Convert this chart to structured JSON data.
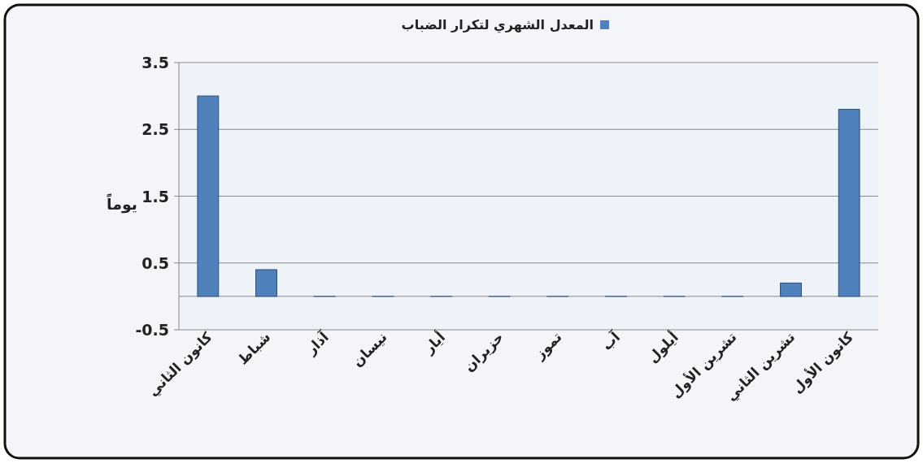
{
  "chart_data": {
    "type": "bar",
    "categories": [
      "كانون الثاني",
      "شباط",
      "آذار",
      "نيسان",
      "أيار",
      "حزيران",
      "تموز",
      "آب",
      "أيلول",
      "تشرين الأول",
      "تشرين الثاني",
      "كانون الأول"
    ],
    "series": [
      {
        "name": "المعدل الشهري لتكرار الضباب",
        "color": "#4f81bd",
        "values": [
          3.0,
          0.4,
          0,
          0,
          0,
          0,
          0,
          0,
          0,
          0,
          0.2,
          2.8
        ]
      }
    ],
    "ylabel": "يوماً",
    "ylim": [
      -0.5,
      3.5
    ],
    "yticks": [
      -0.5,
      0.5,
      1.5,
      2.5,
      3.5
    ],
    "grid": "y",
    "legend": "top"
  }
}
